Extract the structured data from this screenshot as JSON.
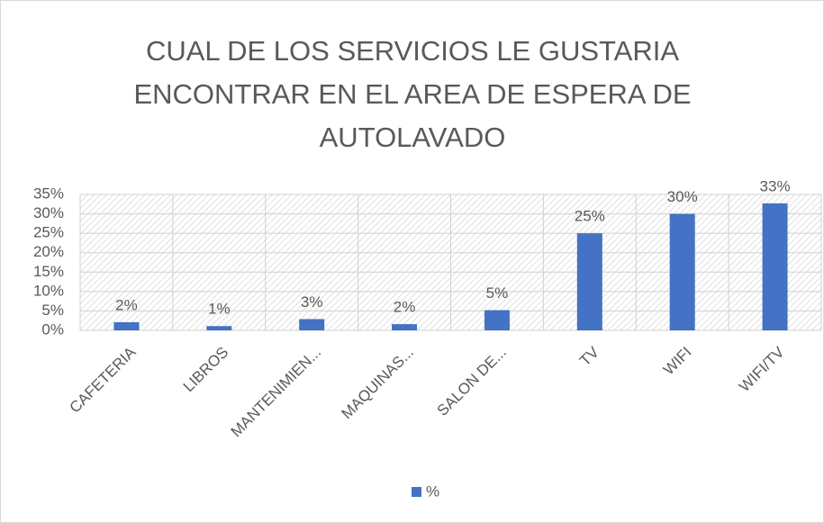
{
  "chart_data": {
    "type": "bar",
    "title": "CUAL DE LOS SERVICIOS LE GUSTARIA ENCONTRAR EN EL AREA DE ESPERA DE AUTOLAVADO",
    "categories": [
      "CAFETERIA",
      "LIBROS",
      "MANTENIMIEN...",
      "MAQUINAS...",
      "SALON DE...",
      "TV",
      "WIFI",
      "WIFI/TV"
    ],
    "series": [
      {
        "name": "%",
        "color": "#4472c4",
        "values": [
          2.1,
          1.1,
          2.9,
          1.6,
          5.2,
          25,
          30,
          32.7
        ],
        "value_labels": [
          "2%",
          "1%",
          "3%",
          "2%",
          "5%",
          "25%",
          "30%",
          "33%"
        ]
      }
    ],
    "ylim": [
      0,
      35
    ],
    "yticks": [
      {
        "value": 0,
        "label": "0%"
      },
      {
        "value": 5,
        "label": "5%"
      },
      {
        "value": 10,
        "label": "10%"
      },
      {
        "value": 15,
        "label": "15%"
      },
      {
        "value": 20,
        "label": "20%"
      },
      {
        "value": 25,
        "label": "25%"
      },
      {
        "value": 30,
        "label": "30%"
      },
      {
        "value": 35,
        "label": "35%"
      }
    ],
    "grid": true,
    "legend": "bottom"
  }
}
